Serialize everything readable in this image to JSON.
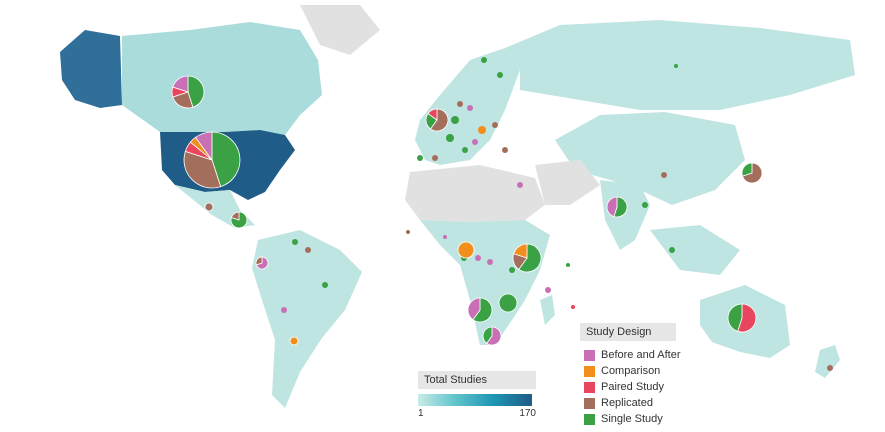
{
  "colors": {
    "before_and_after": "#c96fb6",
    "comparison": "#f28e1c",
    "paired_study": "#e8465e",
    "replicated": "#a46e5c",
    "single_study": "#3aa244",
    "land_low": "#bfe5e2",
    "land_high": "#1f5c87",
    "no_data": "#e1e1e1"
  },
  "study_design_legend": {
    "title": "Study Design",
    "items": [
      {
        "label": "Before and After",
        "color": "#c96fb6"
      },
      {
        "label": "Comparison",
        "color": "#f28e1c"
      },
      {
        "label": "Paired Study",
        "color": "#e8465e"
      },
      {
        "label": "Replicated",
        "color": "#a46e5c"
      },
      {
        "label": "Single Study",
        "color": "#3aa244"
      }
    ]
  },
  "total_studies_legend": {
    "title": "Total Studies",
    "min_label": "1",
    "max_label": "170"
  },
  "markers": [
    {
      "region": "United States",
      "slices": [
        {
          "design": "single_study",
          "value": 45
        },
        {
          "design": "replicated",
          "value": 35
        },
        {
          "design": "paired_study",
          "value": 6
        },
        {
          "design": "comparison",
          "value": 4
        },
        {
          "design": "before_and_after",
          "value": 10
        }
      ]
    },
    {
      "region": "Canada",
      "slices": [
        {
          "design": "single_study",
          "value": 45
        },
        {
          "design": "replicated",
          "value": 25
        },
        {
          "design": "paired_study",
          "value": 10
        },
        {
          "design": "before_and_after",
          "value": 20
        }
      ]
    },
    {
      "region": "Mexico",
      "slices": [
        {
          "design": "replicated",
          "value": 100
        }
      ]
    },
    {
      "region": "Central America",
      "slices": [
        {
          "design": "single_study",
          "value": 80
        },
        {
          "design": "replicated",
          "value": 20
        }
      ]
    },
    {
      "region": "Ecuador",
      "slices": [
        {
          "design": "before_and_after",
          "value": 70
        },
        {
          "design": "replicated",
          "value": 30
        }
      ]
    },
    {
      "region": "Chile",
      "slices": [
        {
          "design": "comparison",
          "value": 100
        }
      ]
    },
    {
      "region": "United Kingdom",
      "slices": [
        {
          "design": "replicated",
          "value": 60
        },
        {
          "design": "single_study",
          "value": 25
        },
        {
          "design": "paired_study",
          "value": 15
        }
      ]
    },
    {
      "region": "Japan",
      "slices": [
        {
          "design": "replicated",
          "value": 70
        },
        {
          "design": "single_study",
          "value": 30
        }
      ]
    },
    {
      "region": "India",
      "slices": [
        {
          "design": "single_study",
          "value": 55
        },
        {
          "design": "before_and_after",
          "value": 45
        }
      ]
    },
    {
      "region": "Cameroon",
      "slices": [
        {
          "design": "comparison",
          "value": 100
        }
      ]
    },
    {
      "region": "Kenya",
      "slices": [
        {
          "design": "single_study",
          "value": 60
        },
        {
          "design": "replicated",
          "value": 20
        },
        {
          "design": "comparison",
          "value": 20
        }
      ]
    },
    {
      "region": "Namibia",
      "slices": [
        {
          "design": "single_study",
          "value": 60
        },
        {
          "design": "before_and_after",
          "value": 40
        }
      ]
    },
    {
      "region": "Zambia",
      "slices": [
        {
          "design": "single_study",
          "value": 100
        }
      ]
    },
    {
      "region": "South Africa",
      "slices": [
        {
          "design": "before_and_after",
          "value": 60
        },
        {
          "design": "single_study",
          "value": 40
        }
      ]
    },
    {
      "region": "Australia",
      "slices": [
        {
          "design": "paired_study",
          "value": 55
        },
        {
          "design": "single_study",
          "value": 45
        }
      ]
    }
  ]
}
